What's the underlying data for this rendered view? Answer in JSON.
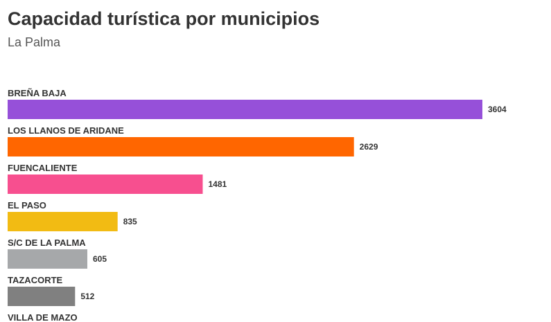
{
  "chart_data": {
    "type": "bar",
    "orientation": "horizontal",
    "title": "Capacidad turística por municipios",
    "subtitle": "La Palma",
    "categories": [
      "BREÑA BAJA",
      "LOS LLANOS DE ARIDANE",
      "FUENCALIENTE",
      "EL PASO",
      "S/C DE LA PALMA",
      "TAZACORTE",
      "VILLA DE MAZO"
    ],
    "values": [
      3604,
      2629,
      1481,
      835,
      605,
      512,
      null
    ],
    "colors": [
      "#9650d9",
      "#ff6600",
      "#f74f8f",
      "#f2bb13",
      "#a6a8aa",
      "#808080",
      "#808080"
    ],
    "xlim": [
      0,
      3604
    ],
    "grid": false,
    "legend": "none"
  }
}
